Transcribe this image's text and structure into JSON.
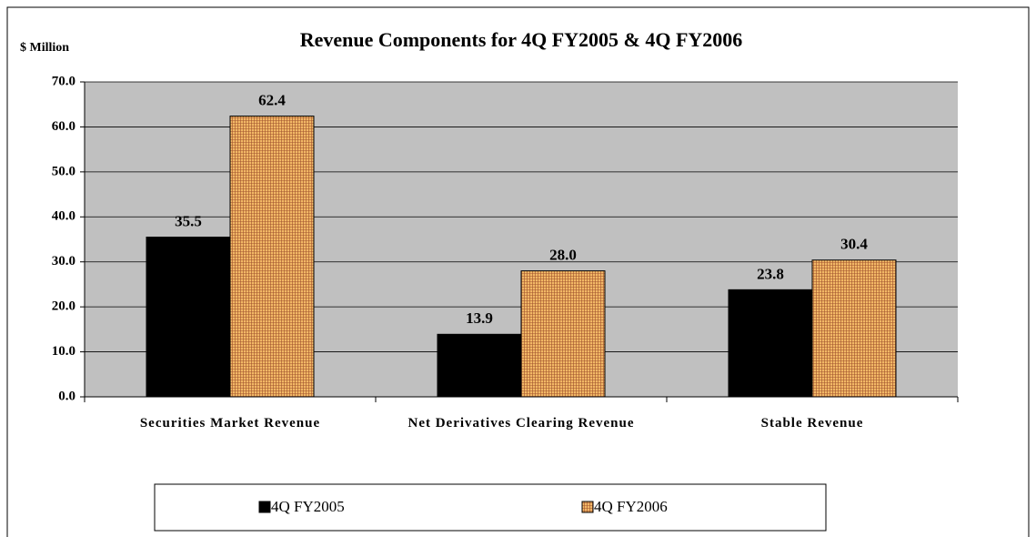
{
  "chart_data": {
    "type": "bar",
    "title": "Revenue Components for 4Q FY2005 & 4Q FY2006",
    "y_label": "$ Million",
    "categories": [
      "Securities Market Revenue",
      "Net Derivatives Clearing Revenue",
      "Stable Revenue"
    ],
    "series": [
      {
        "name": "4Q FY2005",
        "color": "#000000",
        "values": [
          35.5,
          13.9,
          23.8
        ],
        "value_labels": [
          "35.5",
          "13.9",
          "23.8"
        ]
      },
      {
        "name": "4Q FY2006",
        "color": "#f2b866",
        "values": [
          62.4,
          28.0,
          30.4
        ],
        "value_labels": [
          "62.4",
          "28.0",
          "30.4"
        ]
      }
    ],
    "ylim": [
      0,
      70
    ],
    "yticks": [
      {
        "value": 0,
        "label": "0.0"
      },
      {
        "value": 10,
        "label": "10.0"
      },
      {
        "value": 20,
        "label": "20.0"
      },
      {
        "value": 30,
        "label": "30.0"
      },
      {
        "value": 40,
        "label": "40.0"
      },
      {
        "value": 50,
        "label": "50.0"
      },
      {
        "value": 60,
        "label": "60.0"
      },
      {
        "value": 70,
        "label": "70.0"
      }
    ],
    "grid": true,
    "legend": "bottom"
  }
}
